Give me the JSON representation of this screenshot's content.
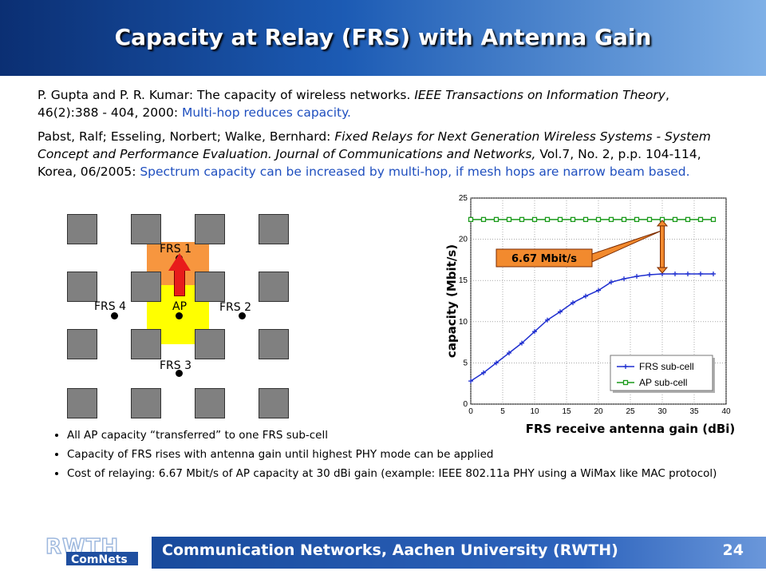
{
  "slide": {
    "title": "Capacity at Relay (FRS) with Antenna Gain",
    "ref1_plain": "P. Gupta and P. R. Kumar: The capacity of wireless networks. ",
    "ref1_italic": "IEEE Transactions on Information Theory",
    "ref1_tail": ", 46(2):388 - 404, 2000: ",
    "ref1_highlight": "Multi-hop reduces capacity.",
    "ref2_plain": "Pabst, Ralf; Esseling, Norbert; Walke, Bernhard: ",
    "ref2_italic": "Fixed Relays for Next Generation Wireless Systems - System Concept and Performance Evaluation. Journal of Communications and Networks,",
    "ref2_tail": " Vol.7, No. 2, p.p. 104-114, Korea, 06/2005: ",
    "ref2_highlight": "Spectrum capacity can be increased by multi-hop, if mesh hops are narrow beam based."
  },
  "diagram": {
    "frs1": "FRS 1",
    "frs2": "FRS 2",
    "frs3": "FRS 3",
    "frs4": "FRS 4",
    "ap": "AP",
    "colors": {
      "frs_zone": "#f7963f",
      "ap_zone": "#ffff00",
      "arrow": "#e81b1b"
    }
  },
  "chart_data": {
    "type": "line",
    "xlabel": "FRS receive antenna gain (dBi)",
    "ylabel": "capacity (Mbit/s)",
    "xlim": [
      0,
      40
    ],
    "ylim": [
      0,
      25
    ],
    "xticks": [
      0,
      5,
      10,
      15,
      20,
      25,
      30,
      35,
      40
    ],
    "yticks": [
      0,
      5,
      10,
      15,
      20,
      25
    ],
    "grid": true,
    "legend_position": "bottom-right",
    "annotation": "6.67 Mbit/s",
    "series": [
      {
        "name": "FRS sub-cell",
        "color": "#1f2fd0",
        "marker": "plus",
        "x": [
          0,
          2,
          4,
          6,
          8,
          10,
          12,
          14,
          16,
          18,
          20,
          22,
          24,
          26,
          28,
          30,
          32,
          34,
          36,
          38
        ],
        "values": [
          2.8,
          3.8,
          5.0,
          6.2,
          7.4,
          8.8,
          10.2,
          11.2,
          12.3,
          13.1,
          13.8,
          14.8,
          15.2,
          15.5,
          15.7,
          15.8,
          15.8,
          15.8,
          15.8,
          15.8
        ]
      },
      {
        "name": "AP sub-cell",
        "color": "#1a9a1a",
        "marker": "square",
        "x": [
          0,
          2,
          4,
          6,
          8,
          10,
          12,
          14,
          16,
          18,
          20,
          22,
          24,
          26,
          28,
          30,
          32,
          34,
          36,
          38
        ],
        "values": [
          22.4,
          22.4,
          22.4,
          22.4,
          22.4,
          22.4,
          22.4,
          22.4,
          22.4,
          22.4,
          22.4,
          22.4,
          22.4,
          22.4,
          22.4,
          22.4,
          22.4,
          22.4,
          22.4,
          22.4
        ]
      }
    ]
  },
  "bullets": [
    "All AP capacity “transferred” to one FRS sub-cell",
    "Capacity of FRS rises with antenna gain until highest PHY mode can be applied",
    "Cost of relaying: 6.67 Mbit/s of AP capacity at 30 dBi gain (example: IEEE 802.11a PHY using a WiMax like MAC protocol)"
  ],
  "footer": {
    "logo_top": "RWTH",
    "logo_bottom": "ComNets",
    "text": "Communication Networks, Aachen University (RWTH)",
    "page": "24"
  }
}
